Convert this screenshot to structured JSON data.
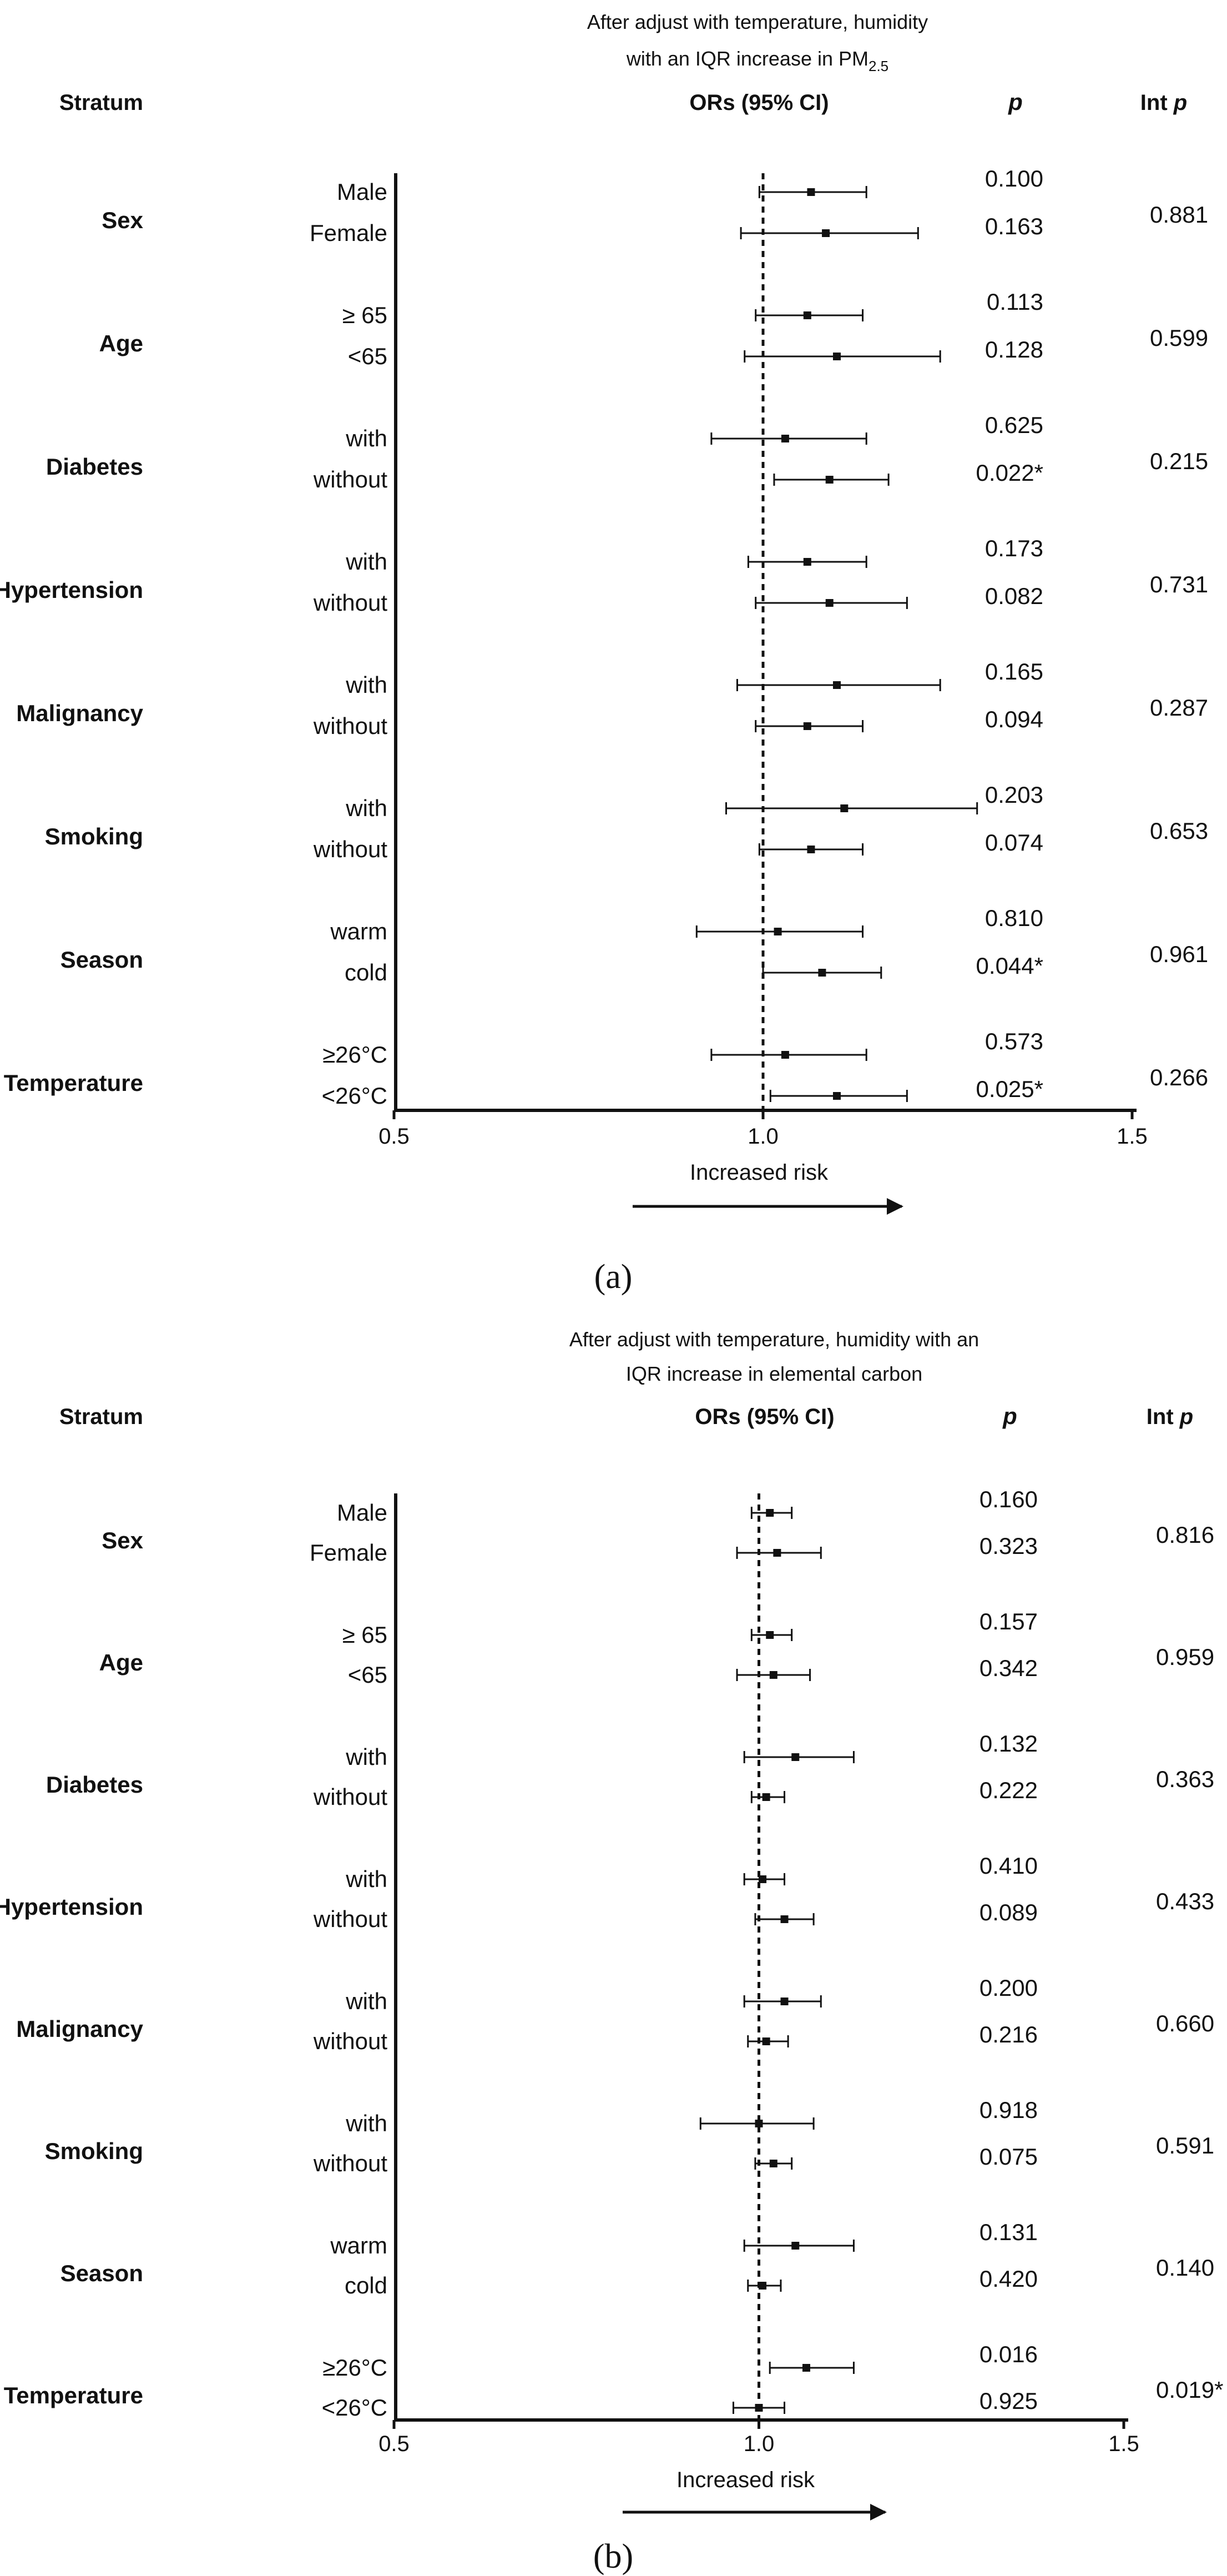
{
  "chart_data": [
    {
      "type": "forest",
      "panel_label": "(a)",
      "title_lines": [
        "After adjust with temperature, humidity",
        "with an IQR increase in PM"
      ],
      "title_subscript": "2.5",
      "headers": {
        "stratum": "Stratum",
        "or": "ORs (95% CI)",
        "p": "p",
        "int_p_prefix": "Int",
        "int_p_italic": "p"
      },
      "xlim": [
        0.5,
        1.5
      ],
      "x_ticks": [
        "0.5",
        "1.0",
        "1.5"
      ],
      "reference_line": 1.0,
      "arrow_label": "Increased risk",
      "groups": [
        {
          "name": "Sex",
          "int_p": "0.881",
          "rows": [
            {
              "label": "Male",
              "or": 1.065,
              "lower": 0.995,
              "upper": 1.14,
              "p": "0.100"
            },
            {
              "label": "Female",
              "or": 1.085,
              "lower": 0.97,
              "upper": 1.21,
              "p": "0.163"
            }
          ]
        },
        {
          "name": "Age",
          "int_p": "0.599",
          "rows": [
            {
              "label": "≥ 65",
              "or": 1.06,
              "lower": 0.99,
              "upper": 1.135,
              "p": "0.113"
            },
            {
              "label": "<65",
              "or": 1.1,
              "lower": 0.975,
              "upper": 1.24,
              "p": "0.128"
            }
          ]
        },
        {
          "name": "Diabetes",
          "int_p": "0.215",
          "rows": [
            {
              "label": "with",
              "or": 1.03,
              "lower": 0.93,
              "upper": 1.14,
              "p": "0.625"
            },
            {
              "label": "without",
              "or": 1.09,
              "lower": 1.015,
              "upper": 1.17,
              "p": "0.022*"
            }
          ]
        },
        {
          "name": "Hypertension",
          "int_p": "0.731",
          "rows": [
            {
              "label": "with",
              "or": 1.06,
              "lower": 0.98,
              "upper": 1.14,
              "p": "0.173"
            },
            {
              "label": "without",
              "or": 1.09,
              "lower": 0.99,
              "upper": 1.195,
              "p": "0.082"
            }
          ]
        },
        {
          "name": "Malignancy",
          "int_p": "0.287",
          "rows": [
            {
              "label": "with",
              "or": 1.1,
              "lower": 0.965,
              "upper": 1.24,
              "p": "0.165"
            },
            {
              "label": "without",
              "or": 1.06,
              "lower": 0.99,
              "upper": 1.135,
              "p": "0.094"
            }
          ]
        },
        {
          "name": "Smoking",
          "int_p": "0.653",
          "rows": [
            {
              "label": "with",
              "or": 1.11,
              "lower": 0.95,
              "upper": 1.29,
              "p": "0.203"
            },
            {
              "label": "without",
              "or": 1.065,
              "lower": 0.995,
              "upper": 1.135,
              "p": "0.074"
            }
          ]
        },
        {
          "name": "Season",
          "int_p": "0.961",
          "rows": [
            {
              "label": "warm",
              "or": 1.02,
              "lower": 0.91,
              "upper": 1.135,
              "p": "0.810"
            },
            {
              "label": "cold",
              "or": 1.08,
              "lower": 1.0,
              "upper": 1.16,
              "p": "0.044*"
            }
          ]
        },
        {
          "name": "Temperature",
          "int_p": "0.266",
          "rows": [
            {
              "label": "≥26°C",
              "or": 1.03,
              "lower": 0.93,
              "upper": 1.14,
              "p": "0.573"
            },
            {
              "label": "<26°C",
              "or": 1.1,
              "lower": 1.01,
              "upper": 1.195,
              "p": "0.025*"
            }
          ]
        }
      ]
    },
    {
      "type": "forest",
      "panel_label": "(b)",
      "title_lines": [
        "After adjust with temperature, humidity with an",
        "IQR increase in elemental carbon"
      ],
      "title_subscript": "",
      "headers": {
        "stratum": "Stratum",
        "or": "ORs (95% CI)",
        "p": "p",
        "int_p_prefix": "Int",
        "int_p_italic": "p"
      },
      "xlim": [
        0.5,
        1.5
      ],
      "x_ticks": [
        "0.5",
        "1.0",
        "1.5"
      ],
      "reference_line": 1.0,
      "arrow_label": "Increased risk",
      "groups": [
        {
          "name": "Sex",
          "int_p": "0.816",
          "rows": [
            {
              "label": "Male",
              "or": 1.015,
              "lower": 0.99,
              "upper": 1.045,
              "p": "0.160"
            },
            {
              "label": "Female",
              "or": 1.025,
              "lower": 0.97,
              "upper": 1.085,
              "p": "0.323"
            }
          ]
        },
        {
          "name": "Age",
          "int_p": "0.959",
          "rows": [
            {
              "label": "≥ 65",
              "or": 1.015,
              "lower": 0.99,
              "upper": 1.045,
              "p": "0.157"
            },
            {
              "label": "<65",
              "or": 1.02,
              "lower": 0.97,
              "upper": 1.07,
              "p": "0.342"
            }
          ]
        },
        {
          "name": "Diabetes",
          "int_p": "0.363",
          "rows": [
            {
              "label": "with",
              "or": 1.05,
              "lower": 0.98,
              "upper": 1.13,
              "p": "0.132"
            },
            {
              "label": "without",
              "or": 1.01,
              "lower": 0.99,
              "upper": 1.035,
              "p": "0.222"
            }
          ]
        },
        {
          "name": "Hypertension",
          "int_p": "0.433",
          "rows": [
            {
              "label": "with",
              "or": 1.005,
              "lower": 0.98,
              "upper": 1.035,
              "p": "0.410"
            },
            {
              "label": "without",
              "or": 1.035,
              "lower": 0.995,
              "upper": 1.075,
              "p": "0.089"
            }
          ]
        },
        {
          "name": "Malignancy",
          "int_p": "0.660",
          "rows": [
            {
              "label": "with",
              "or": 1.035,
              "lower": 0.98,
              "upper": 1.085,
              "p": "0.200"
            },
            {
              "label": "without",
              "or": 1.01,
              "lower": 0.985,
              "upper": 1.04,
              "p": "0.216"
            }
          ]
        },
        {
          "name": "Smoking",
          "int_p": "0.591",
          "rows": [
            {
              "label": "with",
              "or": 1.0,
              "lower": 0.92,
              "upper": 1.075,
              "p": "0.918"
            },
            {
              "label": "without",
              "or": 1.02,
              "lower": 0.995,
              "upper": 1.045,
              "p": "0.075"
            }
          ]
        },
        {
          "name": "Season",
          "int_p": "0.140",
          "rows": [
            {
              "label": "warm",
              "or": 1.05,
              "lower": 0.98,
              "upper": 1.13,
              "p": "0.131"
            },
            {
              "label": "cold",
              "or": 1.005,
              "lower": 0.985,
              "upper": 1.03,
              "p": "0.420"
            }
          ]
        },
        {
          "name": "Temperature",
          "int_p": "0.019*",
          "rows": [
            {
              "label": "≥26°C",
              "or": 1.065,
              "lower": 1.015,
              "upper": 1.13,
              "p": "0.016"
            },
            {
              "label": "<26°C",
              "or": 1.0,
              "lower": 0.965,
              "upper": 1.035,
              "p": "0.925"
            }
          ]
        }
      ]
    }
  ]
}
